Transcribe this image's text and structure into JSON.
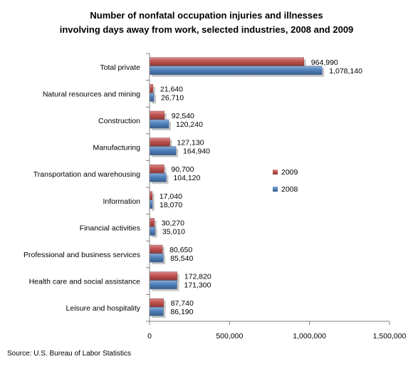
{
  "chart_data": {
    "type": "bar",
    "orientation": "horizontal",
    "title_line1": "Number of nonfatal occupation injuries and illnesses",
    "title_line2": "involving days away from work, selected industries, 2008 and 2009",
    "categories": [
      "Total private",
      "Natural resources and mining",
      "Construction",
      "Manufacturing",
      "Transportation and warehousing",
      "Information",
      "Financial activities",
      "Professional and business services",
      "Health care and social assistance",
      "Leisure and hospitality"
    ],
    "series": [
      {
        "name": "2009",
        "color": "#c0504d",
        "values": [
          964990,
          21640,
          92540,
          127130,
          90700,
          17040,
          30270,
          80650,
          172820,
          87740
        ],
        "labels": [
          "964,990",
          "21,640",
          "92,540",
          "127,130",
          "90,700",
          "17,040",
          "30,270",
          "80,650",
          "172,820",
          "87,740"
        ]
      },
      {
        "name": "2008",
        "color": "#4f81bd",
        "values": [
          1078140,
          26710,
          120240,
          164940,
          104120,
          18070,
          35010,
          85540,
          171300,
          86190
        ],
        "labels": [
          "1,078,140",
          "26,710",
          "120,240",
          "164,940",
          "104,120",
          "18,070",
          "35,010",
          "85,540",
          "171,300",
          "86,190"
        ]
      }
    ],
    "xlim": [
      0,
      1500000
    ],
    "xticks": [
      {
        "value": 0,
        "label": "0"
      },
      {
        "value": 500000,
        "label": "500,000"
      },
      {
        "value": 1000000,
        "label": "1,000,000"
      },
      {
        "value": 1500000,
        "label": "1,500,000"
      }
    ],
    "legend_position": "right-middle",
    "grid": false
  },
  "source": "Source: U.S. Bureau of Labor Statistics"
}
